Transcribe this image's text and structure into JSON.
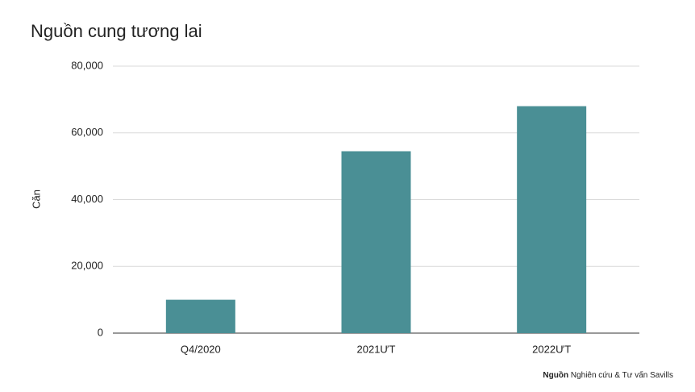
{
  "chart_data": {
    "type": "bar",
    "title": "Nguồn cung tương lai",
    "y_label": "Căn",
    "categories": [
      "Q4/2020",
      "2021ƯT",
      "2022ƯT"
    ],
    "values": [
      10000,
      54500,
      68000
    ],
    "color": "#4a8f95",
    "ylim": [
      0,
      80000
    ],
    "yticks": [
      0,
      {
        "value": 20000,
        "label": "20,000"
      },
      {
        "value": 40000,
        "label": "40,000"
      },
      {
        "value": 60000,
        "label": "60,000"
      },
      {
        "value": 80000,
        "label": "80,000"
      }
    ],
    "grid": true,
    "source_label": "Nguồn",
    "source_text": "Nghiên cứu & Tư vấn Savills"
  }
}
